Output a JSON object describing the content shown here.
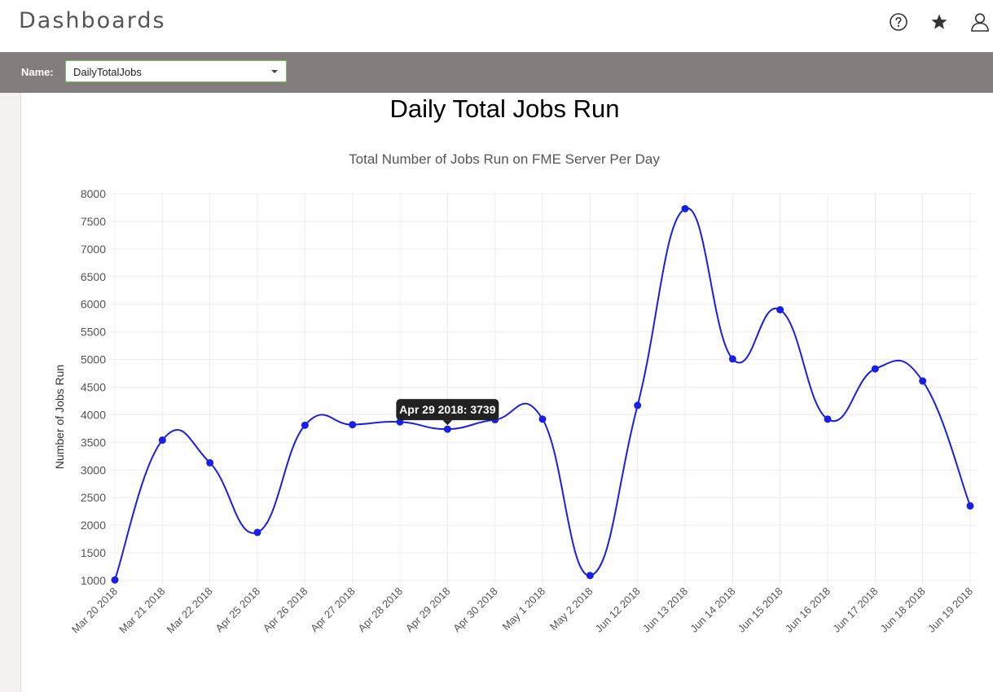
{
  "header": {
    "title": "Dashboards",
    "icons": [
      "help-icon",
      "star-icon",
      "user-icon"
    ]
  },
  "filter": {
    "label": "Name:",
    "selected": "DailyTotalJobs"
  },
  "dashboard": {
    "heading": "Daily Total Jobs Run"
  },
  "chart_data": {
    "type": "line",
    "title": "Total Number of Jobs Run on FME Server Per Day",
    "xlabel": "",
    "ylabel": "Number of Jobs Run",
    "categories": [
      "Mar 20 2018",
      "Mar 21 2018",
      "Mar 22 2018",
      "Apr 25 2018",
      "Apr 26 2018",
      "Apr 27 2018",
      "Apr 28 2018",
      "Apr 29 2018",
      "Apr 30 2018",
      "May  1 2018",
      "May  2 2018",
      "Jun 12 2018",
      "Jun 13 2018",
      "Jun 14 2018",
      "Jun 15 2018",
      "Jun 16 2018",
      "Jun 17 2018",
      "Jun 18 2018",
      "Jun 19 2018"
    ],
    "series": [
      {
        "name": "",
        "values": [
          1010,
          3540,
          3130,
          1870,
          3810,
          3820,
          3870,
          3739,
          3910,
          3920,
          1090,
          4170,
          7730,
          5010,
          5900,
          3920,
          4830,
          4610,
          2350
        ]
      }
    ],
    "ylim": [
      1000,
      8000
    ],
    "yticks": [
      1000,
      1500,
      2000,
      2500,
      3000,
      3500,
      4000,
      4500,
      5000,
      5500,
      6000,
      6500,
      7000,
      7500,
      8000
    ],
    "grid": true,
    "colors": {
      "line": "#1a1fe6",
      "point": "#1a1fe6",
      "grid": "#ececec",
      "tooltip_bg": "#222222"
    },
    "tooltip": {
      "text": "Apr 29 2018: 3739",
      "index": 7
    }
  }
}
